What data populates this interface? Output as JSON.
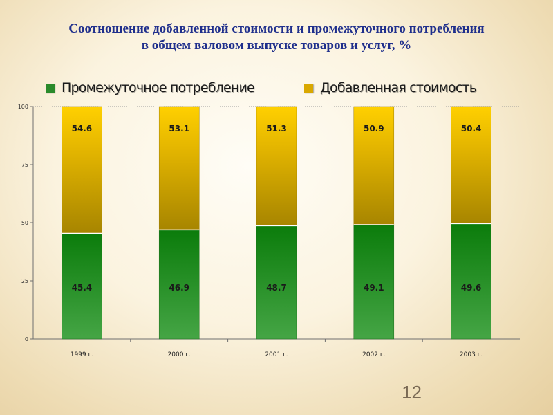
{
  "title": {
    "line1": "Соотношение добавленной стоимости и промежуточного потребления",
    "line2": "в общем валовом выпуске товаров и услуг, %"
  },
  "page_number": "12",
  "chart_data": {
    "type": "bar",
    "stacked": true,
    "categories": [
      "1999 г.",
      "2000 г.",
      "2001 г.",
      "2002 г.",
      "2003 г."
    ],
    "series": [
      {
        "name": "Промежуточное потребление",
        "values": [
          45.4,
          46.9,
          48.7,
          49.1,
          49.6
        ],
        "color": "#2a8a2a"
      },
      {
        "name": "Добавленная стоимость",
        "values": [
          54.6,
          53.1,
          51.3,
          50.9,
          50.4
        ],
        "color": "#d9a800"
      }
    ],
    "data_labels": {
      "series0": [
        "45.4",
        "46.9",
        "48.7",
        "49.1",
        "49.6"
      ],
      "series1": [
        "54.6",
        "53.1",
        "51.3",
        "50.9",
        "50.4"
      ]
    },
    "yticks": [
      "0",
      "25",
      "50",
      "75",
      "100"
    ],
    "ylim": [
      0,
      100
    ],
    "xlabel": "",
    "ylabel": "",
    "grid": false,
    "legend_position": "top"
  }
}
